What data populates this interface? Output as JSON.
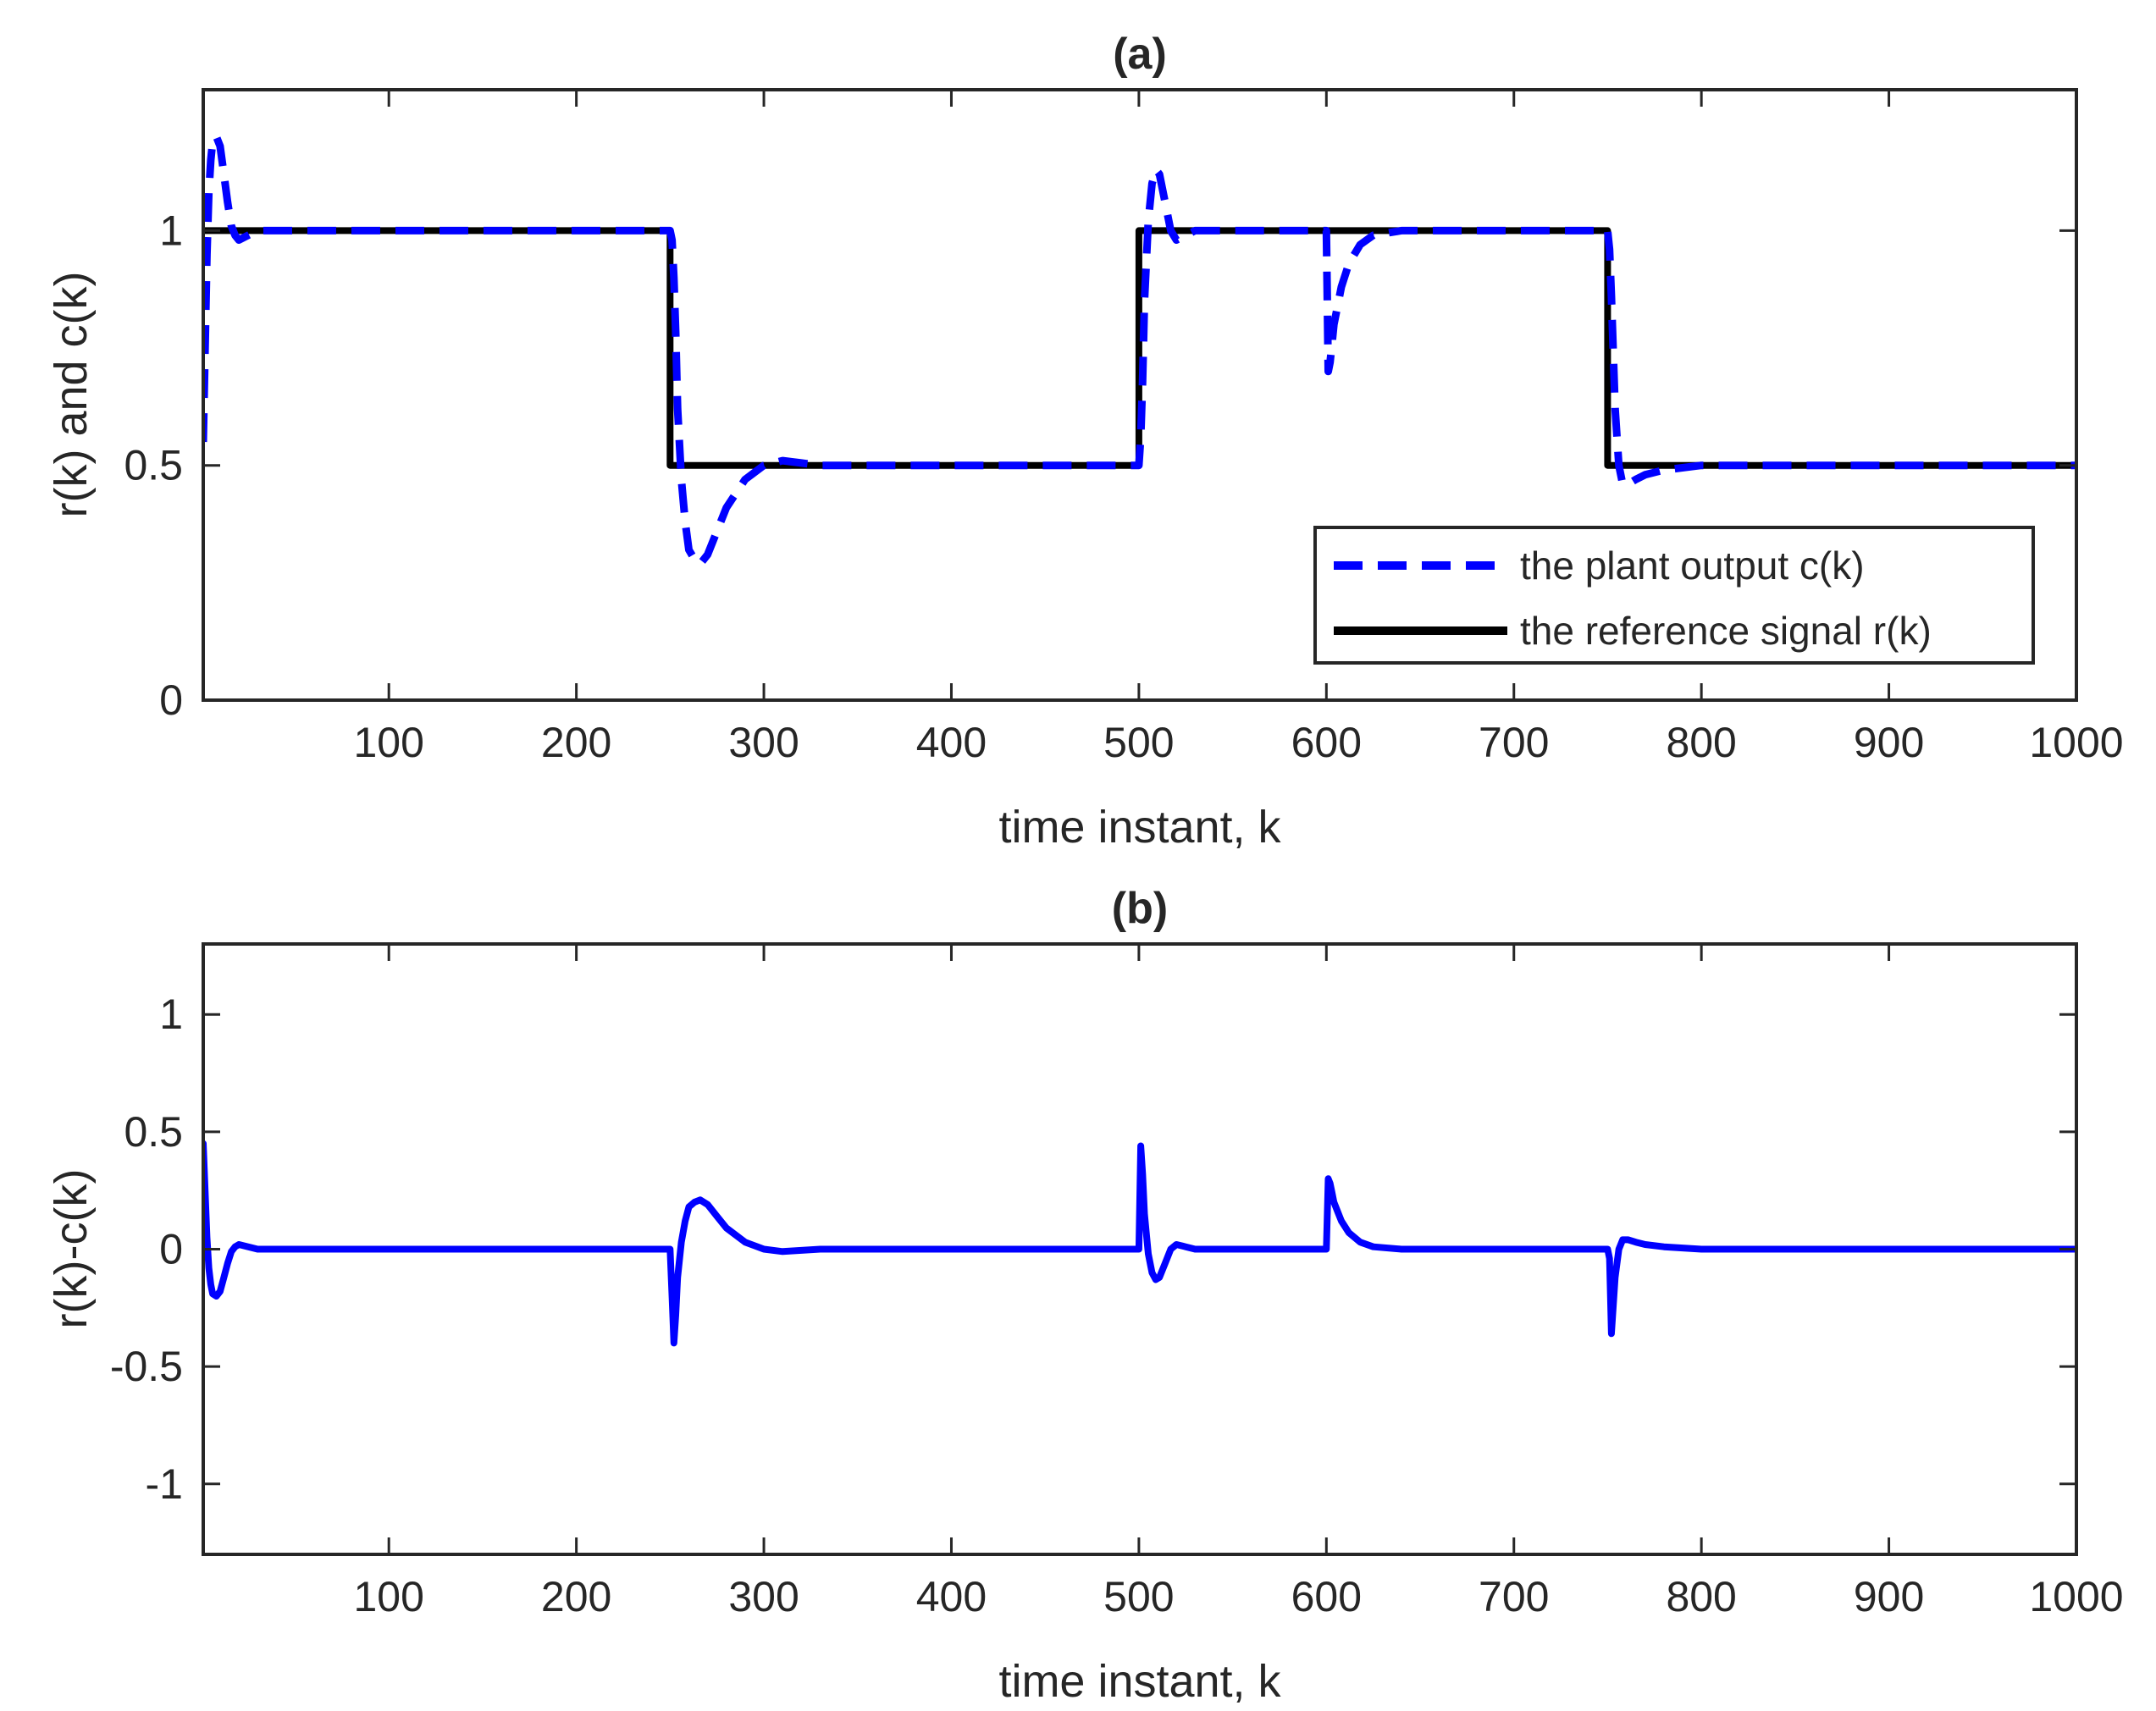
{
  "chart_data": [
    {
      "type": "line",
      "title": "(a)",
      "xlabel": "time instant, k",
      "ylabel": "r(k) and c(k)",
      "xlim": [
        1,
        1000
      ],
      "ylim": [
        0,
        1.3
      ],
      "xticks": [
        100,
        200,
        300,
        400,
        500,
        600,
        700,
        800,
        900,
        1000
      ],
      "xtick_labels": [
        "100",
        "200",
        "300",
        "400",
        "500",
        "600",
        "700",
        "800",
        "900",
        "1000"
      ],
      "yticks": [
        0,
        0.5,
        1
      ],
      "ytick_labels": [
        "0",
        "0.5",
        "1"
      ],
      "grid": false,
      "legend_position": "bottom-right",
      "series": [
        {
          "name": "the plant output c(k)",
          "legend_label": "the plant output c(k)",
          "color": "#0000ff",
          "style": "dashed",
          "x": [
            1,
            2,
            3,
            4,
            5,
            6,
            8,
            10,
            12,
            14,
            16,
            18,
            20,
            25,
            30,
            40,
            100,
            200,
            250,
            251,
            252,
            253,
            254,
            256,
            258,
            260,
            263,
            266,
            270,
            275,
            280,
            290,
            300,
            310,
            320,
            330,
            400,
            500,
            501,
            502,
            503,
            505,
            507,
            509,
            511,
            514,
            517,
            520,
            525,
            530,
            540,
            560,
            600,
            601,
            602,
            603,
            604,
            606,
            608,
            612,
            618,
            625,
            640,
            750,
            751,
            752,
            753,
            754,
            756,
            758,
            761,
            765,
            770,
            780,
            800,
            850,
            1000
          ],
          "y": [
            0.55,
            0.75,
            0.95,
            1.08,
            1.15,
            1.19,
            1.2,
            1.18,
            1.12,
            1.06,
            1.01,
            0.99,
            0.98,
            0.99,
            1.0,
            1.0,
            1.0,
            1.0,
            1.0,
            0.98,
            0.9,
            0.78,
            0.62,
            0.47,
            0.38,
            0.32,
            0.3,
            0.29,
            0.31,
            0.36,
            0.41,
            0.47,
            0.5,
            0.51,
            0.505,
            0.5,
            0.5,
            0.5,
            0.56,
            0.68,
            0.85,
            1.02,
            1.1,
            1.13,
            1.12,
            1.06,
            1.0,
            0.98,
            0.99,
            1.0,
            1.0,
            1.0,
            1.0,
            0.7,
            0.72,
            0.76,
            0.8,
            0.84,
            0.88,
            0.93,
            0.97,
            0.99,
            1.0,
            1.0,
            0.96,
            0.86,
            0.74,
            0.62,
            0.5,
            0.46,
            0.46,
            0.47,
            0.48,
            0.49,
            0.5,
            0.5,
            0.5
          ]
        },
        {
          "name": "the reference signal r(k)",
          "legend_label": "the reference signal r(k)",
          "color": "#000000",
          "style": "solid",
          "x": [
            1,
            250,
            250,
            500,
            500,
            750,
            750,
            1000
          ],
          "y": [
            1,
            1,
            0.5,
            0.5,
            1,
            1,
            0.5,
            0.5
          ]
        }
      ]
    },
    {
      "type": "line",
      "title": "(b)",
      "xlabel": "time instant, k",
      "ylabel": "r(k)-c(k)",
      "xlim": [
        1,
        1000
      ],
      "ylim": [
        -1.3,
        1.3
      ],
      "xticks": [
        100,
        200,
        300,
        400,
        500,
        600,
        700,
        800,
        900,
        1000
      ],
      "xtick_labels": [
        "100",
        "200",
        "300",
        "400",
        "500",
        "600",
        "700",
        "800",
        "900",
        "1000"
      ],
      "yticks": [
        -1,
        -0.5,
        0,
        0.5,
        1
      ],
      "ytick_labels": [
        "-1",
        "-0.5",
        "0",
        "0.5",
        "1"
      ],
      "grid": false,
      "series": [
        {
          "name": "r(k)-c(k)",
          "color": "#0000ff",
          "style": "solid",
          "x": [
            1,
            2,
            3,
            4,
            5,
            6,
            8,
            10,
            12,
            14,
            16,
            18,
            20,
            25,
            30,
            40,
            250,
            251,
            252,
            253,
            254,
            256,
            258,
            260,
            263,
            266,
            270,
            275,
            280,
            290,
            300,
            310,
            320,
            330,
            500,
            501,
            502,
            503,
            505,
            507,
            509,
            511,
            514,
            517,
            520,
            525,
            530,
            540,
            600,
            601,
            602,
            603,
            604,
            606,
            608,
            612,
            618,
            625,
            640,
            750,
            751,
            752,
            753,
            754,
            756,
            758,
            761,
            765,
            770,
            780,
            800,
            850,
            1000
          ],
          "y": [
            0.45,
            0.25,
            0.05,
            -0.08,
            -0.15,
            -0.19,
            -0.2,
            -0.18,
            -0.12,
            -0.06,
            -0.01,
            0.01,
            0.02,
            0.01,
            0.0,
            0.0,
            0.0,
            -0.2,
            -0.4,
            -0.28,
            -0.12,
            0.03,
            0.12,
            0.18,
            0.2,
            0.21,
            0.19,
            0.14,
            0.09,
            0.03,
            0.0,
            -0.01,
            -0.005,
            0.0,
            0.0,
            0.44,
            0.32,
            0.15,
            -0.02,
            -0.1,
            -0.13,
            -0.12,
            -0.06,
            0.0,
            0.02,
            0.01,
            0.0,
            0.0,
            0.0,
            0.3,
            0.28,
            0.24,
            0.2,
            0.16,
            0.12,
            0.07,
            0.03,
            0.01,
            0.0,
            0.0,
            -0.04,
            -0.36,
            -0.24,
            -0.12,
            0.0,
            0.04,
            0.04,
            0.03,
            0.02,
            0.01,
            0.0,
            0.0,
            0.0
          ]
        }
      ]
    }
  ]
}
